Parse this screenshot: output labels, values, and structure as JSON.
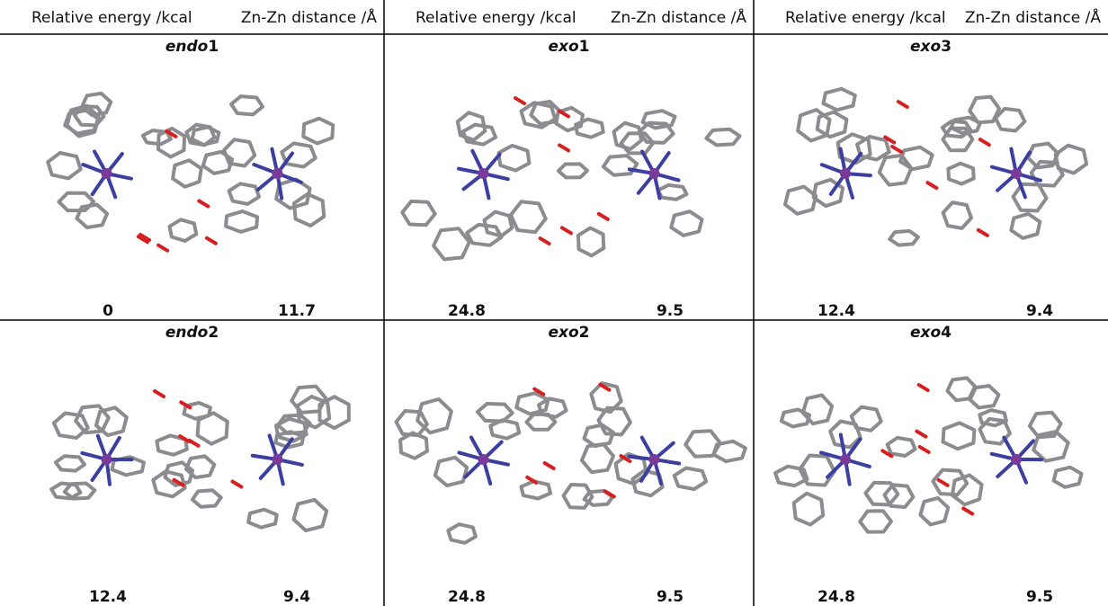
{
  "columns": [
    {
      "energy_label": "Relative energy /kcal",
      "distance_label": "Zn-Zn distance /Å"
    },
    {
      "energy_label": "Relative energy /kcal",
      "distance_label": "Zn-Zn distance /Å"
    },
    {
      "energy_label": "Relative energy /kcal",
      "distance_label": "Zn-Zn distance /Å"
    }
  ],
  "rows": [
    [
      {
        "name_prefix": "endo",
        "name_number": "1",
        "energy": 0,
        "distance": 11.7
      },
      {
        "name_prefix": "exo",
        "name_number": "1",
        "energy": 24.8,
        "distance": 9.5
      },
      {
        "name_prefix": "exo",
        "name_number": "3",
        "energy": 12.4,
        "distance": 9.4
      }
    ],
    [
      {
        "name_prefix": "endo",
        "name_number": "2",
        "energy": 12.4,
        "distance": 9.4
      },
      {
        "name_prefix": "exo",
        "name_number": "2",
        "energy": 24.8,
        "distance": 9.5
      },
      {
        "name_prefix": "exo",
        "name_number": "4",
        "energy": 24.8,
        "distance": 9.5
      }
    ]
  ]
}
